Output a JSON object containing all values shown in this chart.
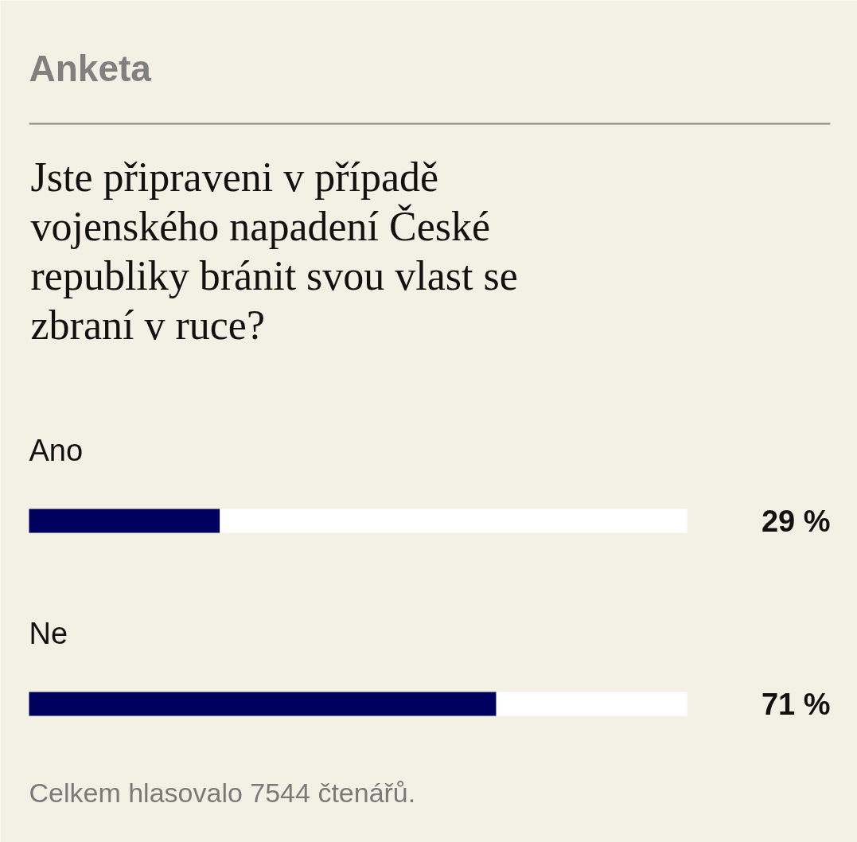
{
  "chart_data": {
    "type": "bar",
    "orientation": "horizontal",
    "stacked": true,
    "title": "Anketa",
    "subtitle": "Jste připraveni v případě vojenského napadení České republiky bránit svou vlast se zbraní v ruce?",
    "categories": [
      "Ano",
      "Ne"
    ],
    "series": [
      {
        "color": "#00005f",
        "values": [
          29,
          71
        ],
        "value_labels": [
          "29 %",
          "71 %"
        ]
      },
      {
        "color": "#ffffff",
        "values": [
          71,
          29
        ]
      }
    ],
    "xlim": [
      0,
      100
    ],
    "tick_labels": false,
    "grid": false,
    "annotations": [
      "Celkem hlasovalo 7544 čtenářů."
    ]
  }
}
